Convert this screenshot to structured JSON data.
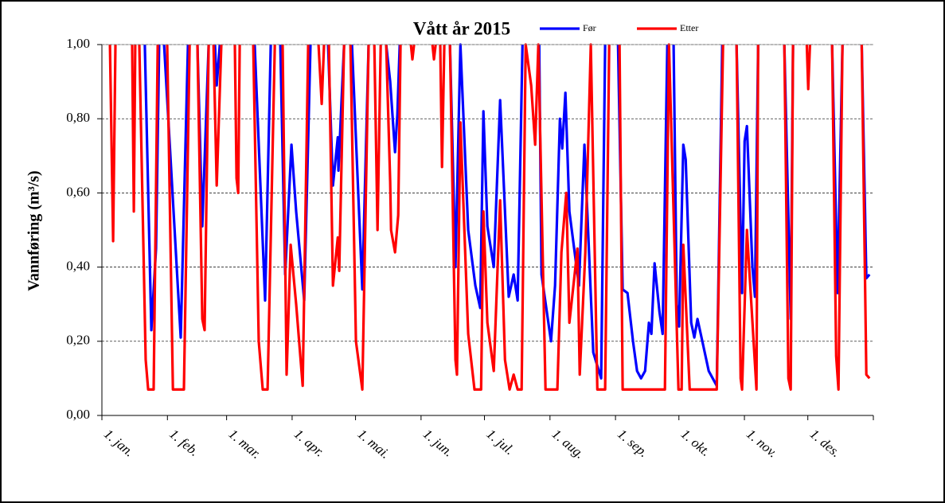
{
  "chart_data": {
    "type": "line",
    "title": "Vått år 2015",
    "y_label": "Vannføring (m³/s)",
    "xlim": [
      0,
      365
    ],
    "xticks": [
      {
        "value": 0,
        "label": "1. jan."
      },
      {
        "value": 31,
        "label": "1. feb."
      },
      {
        "value": 59,
        "label": "1. mar."
      },
      {
        "value": 90,
        "label": "1. apr."
      },
      {
        "value": 120,
        "label": "1. mai."
      },
      {
        "value": 151,
        "label": "1. jun."
      },
      {
        "value": 181,
        "label": "1. jul."
      },
      {
        "value": 212,
        "label": "1. aug."
      },
      {
        "value": 243,
        "label": "1. sep."
      },
      {
        "value": 273,
        "label": "1. okt."
      },
      {
        "value": 304,
        "label": "1. nov."
      },
      {
        "value": 334,
        "label": "1. des."
      }
    ],
    "ylim": [
      0,
      1
    ],
    "yticks": [
      {
        "value": 0,
        "label": "0,00"
      },
      {
        "value": 0.2,
        "label": "0,20"
      },
      {
        "value": 0.4,
        "label": "0,40"
      },
      {
        "value": 0.6,
        "label": "0,60"
      },
      {
        "value": 0.8,
        "label": "0,80"
      },
      {
        "value": 1,
        "label": "1,00"
      }
    ],
    "grid": true,
    "series": [
      {
        "name": "Før",
        "color": "#0000ff",
        "x": [
          20.3,
          23.4,
          25.6,
          27.1,
          null,
          29.4,
          37.3,
          40.7,
          null,
          45.2,
          47.5,
          50.5,
          null,
          53.5,
          54.3,
          55.8,
          null,
          72.3,
          77.2,
          79.9,
          null,
          84.4,
          86.7,
          89.7,
          91.9,
          95.7,
          98.7,
          null,
          107,
          109.3,
          111.6,
          111.9,
          114.6,
          null,
          118.3,
          123.2,
          126.2,
          null,
          134.5,
          136.4,
          138.7,
          139.8,
          140.9,
          null,
          164.7,
          167.3,
          169.6,
          173.3,
          176.7,
          179,
          180.5,
          182.4,
          185.4,
          188.4,
          192.5,
          194.8,
          196.7,
          199,
          null,
          206.9,
          208,
          212.5,
          214.4,
          216.7,
          217.8,
          219.3,
          221.2,
          225.7,
          228.3,
          232.5,
          236.2,
          238.1,
          null,
          244.2,
          246.4,
          248.7,
          251.3,
          253.2,
          255.1,
          257,
          258.8,
          260,
          261.5,
          263.8,
          265.3,
          267.5,
          null,
          270.5,
          272,
          273.1,
          275.1,
          276.2,
          278.8,
          280.3,
          281.8,
          284.1,
          287.1,
          290.9,
          293.5,
          null,
          300.3,
          302.9,
          304.1,
          305.2,
          307.8,
          309,
          310.5,
          null,
          322.9,
          325.9,
          327,
          null,
          345.5,
          348.1,
          350.4,
          null,
          359.5,
          361.7,
          363.2
        ],
        "values": [
          1,
          0.23,
          0.45,
          1,
          null,
          1,
          0.21,
          1,
          null,
          1,
          0.51,
          1,
          null,
          1,
          0.89,
          1,
          null,
          1,
          0.31,
          1,
          null,
          1,
          0.38,
          0.73,
          0.55,
          0.31,
          1,
          null,
          1,
          0.62,
          0.75,
          0.66,
          1,
          null,
          1,
          0.34,
          1,
          null,
          1,
          0.9,
          0.71,
          0.81,
          1,
          null,
          1,
          0.4,
          1,
          0.5,
          0.35,
          0.29,
          0.82,
          0.51,
          0.4,
          0.85,
          0.32,
          0.38,
          0.31,
          1,
          null,
          1,
          0.38,
          0.2,
          0.35,
          0.8,
          0.72,
          0.87,
          0.55,
          0.35,
          0.73,
          0.17,
          0.1,
          1,
          null,
          1,
          0.34,
          0.33,
          0.2,
          0.12,
          0.1,
          0.12,
          0.25,
          0.22,
          0.41,
          0.28,
          0.22,
          1,
          null,
          1,
          0.3,
          0.24,
          0.73,
          0.69,
          0.25,
          0.21,
          0.26,
          0.2,
          0.12,
          0.08,
          1,
          null,
          1,
          0.33,
          0.74,
          0.78,
          0.4,
          0.32,
          1,
          null,
          1,
          0.26,
          1,
          null,
          1,
          0.33,
          1,
          null,
          1,
          0.37,
          0.38
        ]
      },
      {
        "name": "Etter",
        "color": "#ff0000",
        "x": [
          3.8,
          5.3,
          6.4,
          null,
          14.3,
          15.1,
          15.8,
          null,
          17.7,
          20.7,
          21.9,
          24.5,
          26.4,
          null,
          30.9,
          33.6,
          38.8,
          41.5,
          null,
          45.2,
          47.5,
          48.6,
          50.5,
          null,
          52.8,
          54.3,
          56.5,
          null,
          62.9,
          63.7,
          64.5,
          65.2,
          null,
          71.6,
          74.2,
          76.1,
          78.4,
          81.8,
          null,
          85.5,
          87.4,
          89.3,
          91.9,
          95,
          97.6,
          null,
          102.5,
          104,
          105.1,
          null,
          107.4,
          109.3,
          111.6,
          112.3,
          114.6,
          null,
          117.6,
          120.2,
          123.2,
          126.2,
          null,
          128.9,
          130.4,
          131.9,
          null,
          134.5,
          136.4,
          136.8,
          138.7,
          140.2,
          141.3,
          null,
          146.2,
          146.9,
          147.7,
          null,
          156.4,
          157.1,
          157.9,
          null,
          160.1,
          160.9,
          162,
          null,
          164.7,
          167.3,
          168,
          169.6,
          173.3,
          176.3,
          179.4,
          180.5,
          182.4,
          185.4,
          188.4,
          190.7,
          192.9,
          194.8,
          196.7,
          198.6,
          200.5,
          203.1,
          205,
          206.5,
          209.9,
          215.5,
          217.4,
          219.7,
          221.2,
          225,
          226.1,
          228.7,
          231.3,
          234.4,
          238.1,
          240,
          null,
          244.9,
          246.4,
          266.4,
          268.3,
          272.8,
          274.3,
          275.1,
          278.1,
          290.9,
          293.9,
          null,
          300.3,
          302.2,
          302.9,
          305.2,
          309.7,
          310.5,
          null,
          322.9,
          324.8,
          325.9,
          327,
          null,
          333.5,
          334.2,
          335,
          null,
          345.5,
          347.4,
          348.5,
          350.4,
          null,
          359.5,
          361.7,
          363.2
        ],
        "values": [
          1,
          0.47,
          1,
          null,
          1,
          0.55,
          1,
          null,
          1,
          0.15,
          0.07,
          0.07,
          1,
          null,
          1,
          0.07,
          0.07,
          1,
          null,
          1,
          0.26,
          0.23,
          1,
          null,
          1,
          0.62,
          1,
          null,
          1,
          0.64,
          0.6,
          1,
          null,
          1,
          0.2,
          0.07,
          0.07,
          1,
          null,
          1,
          0.11,
          0.46,
          0.3,
          0.08,
          1,
          null,
          1,
          0.84,
          1,
          null,
          1,
          0.35,
          0.48,
          0.39,
          1,
          null,
          1,
          0.2,
          0.07,
          1,
          null,
          1,
          0.5,
          1,
          null,
          1,
          0.63,
          0.5,
          0.44,
          0.54,
          1,
          null,
          1,
          0.96,
          1,
          null,
          1,
          0.96,
          1,
          null,
          1,
          0.67,
          1,
          null,
          1,
          0.15,
          0.11,
          0.79,
          0.22,
          0.07,
          0.07,
          0.55,
          0.25,
          0.12,
          0.58,
          0.15,
          0.07,
          0.11,
          0.07,
          0.07,
          1,
          0.89,
          0.73,
          1,
          0.07,
          0.07,
          0.44,
          0.6,
          0.25,
          0.45,
          0.11,
          0.44,
          1,
          0.07,
          0.07,
          1,
          null,
          1,
          0.07,
          0.07,
          1,
          0.07,
          0.07,
          0.46,
          0.07,
          0.07,
          1,
          null,
          1,
          0.1,
          0.07,
          0.5,
          0.07,
          1,
          null,
          1,
          0.1,
          0.07,
          1,
          null,
          1,
          0.88,
          1,
          null,
          1,
          0.16,
          0.07,
          1,
          null,
          1,
          0.11,
          0.1
        ]
      }
    ]
  }
}
